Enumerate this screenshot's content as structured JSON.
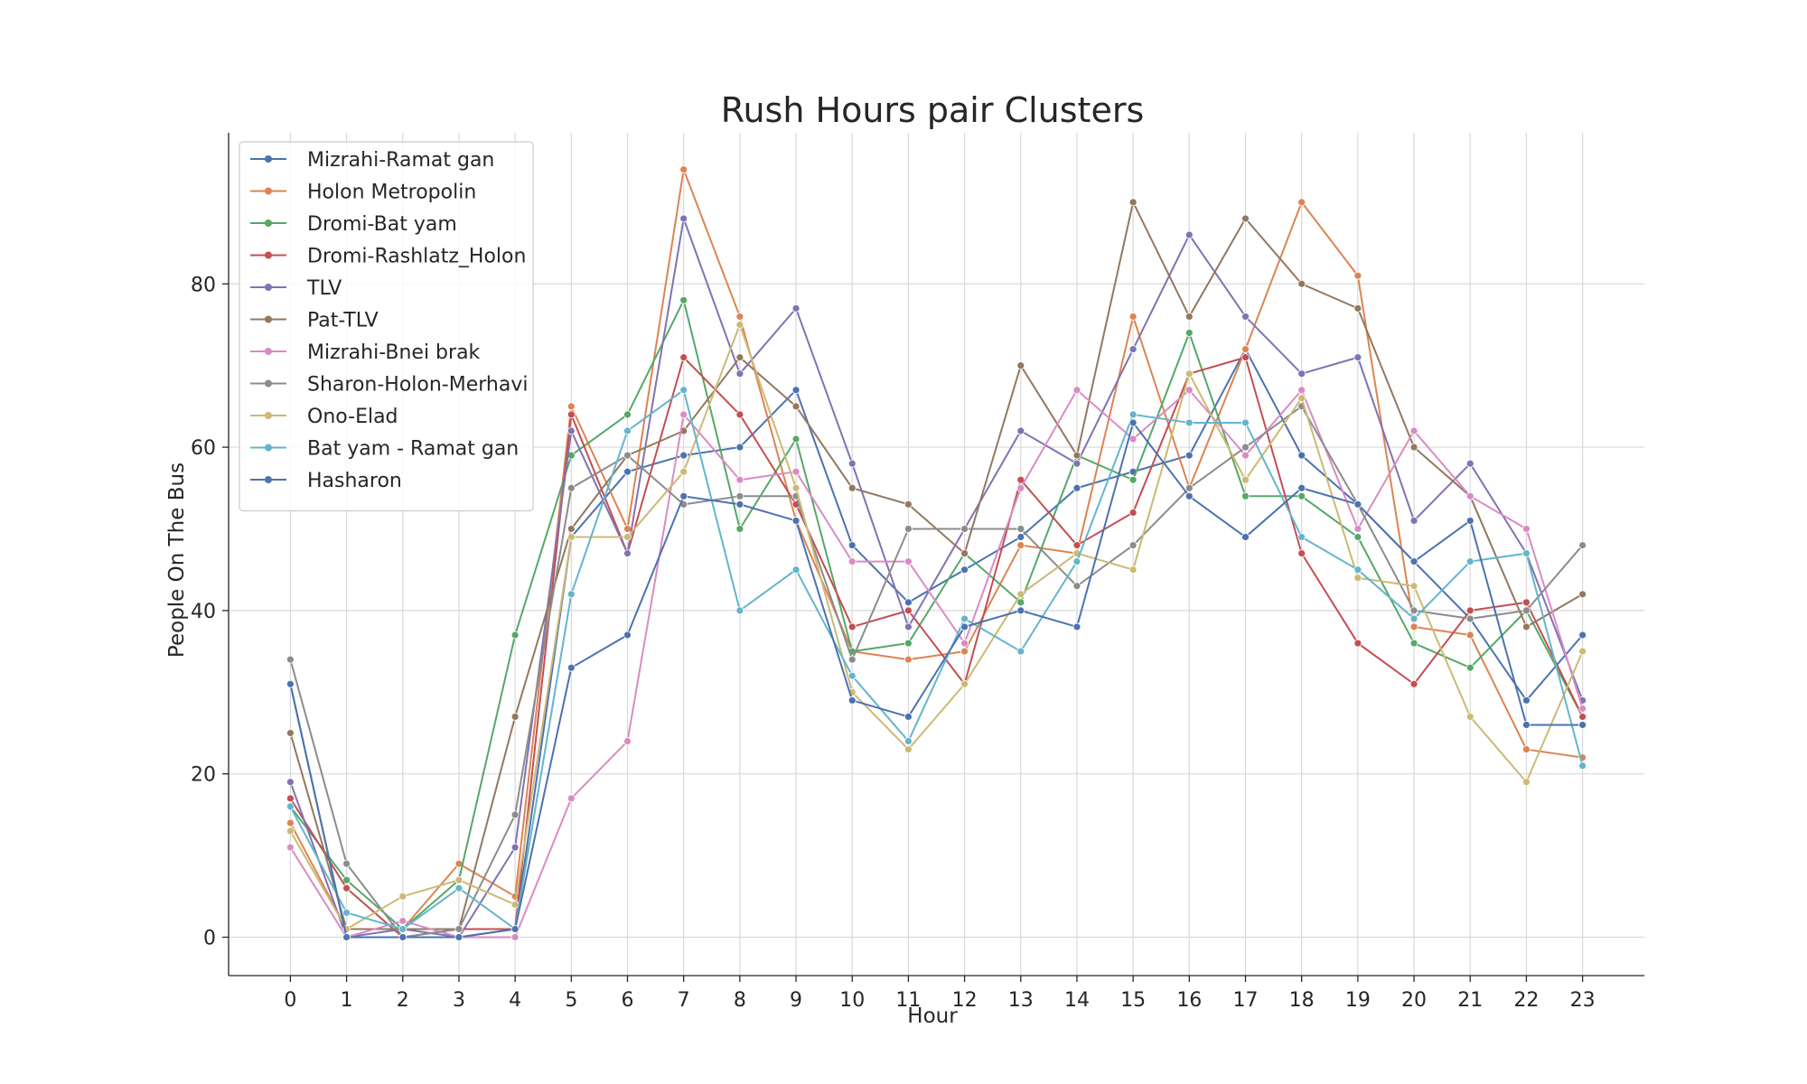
{
  "chart_data": {
    "type": "line",
    "title": "Rush Hours pair Clusters",
    "xlabel": "Hour",
    "ylabel": "People On The Bus",
    "x": [
      0,
      1,
      2,
      3,
      4,
      5,
      6,
      7,
      8,
      9,
      10,
      11,
      12,
      13,
      14,
      15,
      16,
      17,
      18,
      19,
      20,
      21,
      22,
      23
    ],
    "xlim": [
      -1.1,
      24.1
    ],
    "ylim": [
      -4.7,
      98.5
    ],
    "yticks": [
      0,
      20,
      40,
      60,
      80
    ],
    "grid": true,
    "legend_position": "top-left",
    "series": [
      {
        "name": "Mizrahi-Ramat gan",
        "color": "#4c72b0",
        "values": [
          31,
          0,
          0,
          0,
          1,
          49,
          57,
          59,
          60,
          67,
          48,
          41,
          45,
          49,
          55,
          57,
          59,
          72,
          59,
          53,
          46,
          39,
          29,
          37
        ]
      },
      {
        "name": "Holon Metropolin",
        "color": "#dd8452",
        "values": [
          14,
          1,
          1,
          9,
          5,
          65,
          50,
          94,
          76,
          51,
          35,
          34,
          35,
          48,
          47,
          76,
          55,
          72,
          90,
          81,
          38,
          37,
          23,
          22
        ]
      },
      {
        "name": "Dromi-Bat yam",
        "color": "#55a868",
        "values": [
          16,
          7,
          1,
          7,
          37,
          59,
          64,
          78,
          50,
          61,
          35,
          36,
          47,
          41,
          59,
          56,
          74,
          54,
          54,
          49,
          36,
          33,
          40,
          27
        ]
      },
      {
        "name": "Dromi-Rashlatz_Holon",
        "color": "#c44e52",
        "values": [
          17,
          6,
          0,
          1,
          1,
          64,
          47,
          71,
          64,
          53,
          38,
          40,
          31,
          56,
          48,
          52,
          69,
          71,
          47,
          36,
          31,
          40,
          41,
          27
        ]
      },
      {
        "name": "TLV",
        "color": "#8172b3",
        "values": [
          19,
          0,
          1,
          0,
          11,
          62,
          47,
          88,
          69,
          77,
          58,
          38,
          50,
          62,
          58,
          72,
          86,
          76,
          69,
          71,
          51,
          58,
          47,
          29
        ]
      },
      {
        "name": "Pat-TLV",
        "color": "#937860",
        "values": [
          25,
          1,
          1,
          1,
          27,
          50,
          59,
          62,
          71,
          65,
          55,
          53,
          47,
          70,
          59,
          90,
          76,
          88,
          80,
          77,
          60,
          54,
          38,
          42
        ]
      },
      {
        "name": "Mizrahi-Bnei brak",
        "color": "#da8bc3",
        "values": [
          11,
          0,
          2,
          0,
          0,
          17,
          24,
          64,
          56,
          57,
          46,
          46,
          36,
          55,
          67,
          61,
          67,
          59,
          67,
          50,
          62,
          54,
          50,
          28
        ]
      },
      {
        "name": "Sharon-Holon-Merhavi",
        "color": "#8c8c8c",
        "values": [
          34,
          9,
          0,
          1,
          15,
          55,
          59,
          53,
          54,
          54,
          34,
          50,
          50,
          50,
          43,
          48,
          55,
          60,
          65,
          53,
          40,
          39,
          40,
          48
        ]
      },
      {
        "name": "Ono-Elad",
        "color": "#ccb974",
        "values": [
          13,
          1,
          5,
          7,
          4,
          49,
          49,
          57,
          75,
          55,
          30,
          23,
          31,
          42,
          47,
          45,
          69,
          56,
          66,
          44,
          43,
          27,
          19,
          35
        ]
      },
      {
        "name": "Bat yam - Ramat gan",
        "color": "#64b5cd",
        "values": [
          16,
          3,
          1,
          6,
          1,
          42,
          62,
          67,
          40,
          45,
          32,
          24,
          39,
          35,
          46,
          64,
          63,
          63,
          49,
          45,
          39,
          46,
          47,
          21
        ]
      },
      {
        "name": "Hasharon",
        "color": "#4c72b0",
        "values": [
          31,
          0,
          0,
          0,
          1,
          33,
          37,
          54,
          53,
          51,
          29,
          27,
          38,
          40,
          38,
          63,
          54,
          49,
          55,
          53,
          46,
          51,
          26,
          26
        ]
      }
    ]
  }
}
